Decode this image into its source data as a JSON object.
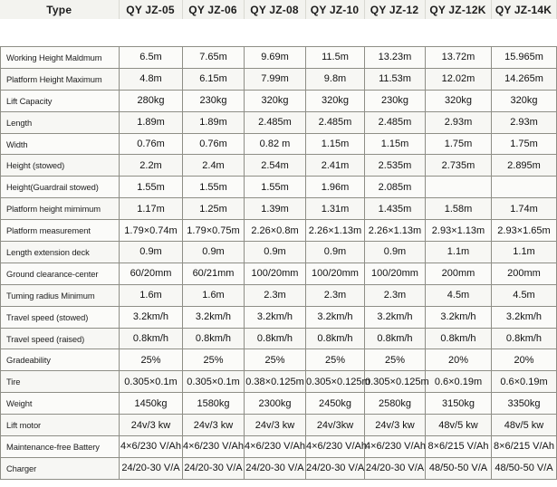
{
  "columns": [
    "Type",
    "QY JZ-05",
    "QY JZ-06",
    "QY JZ-08",
    "QY JZ-10",
    "QY JZ-12",
    "QY JZ-12K",
    "QY JZ-14K"
  ],
  "rows": [
    {
      "label": "Working Height Maldmum",
      "values": [
        "6.5m",
        "7.65m",
        "9.69m",
        "11.5m",
        "13.23m",
        "13.72m",
        "15.965m"
      ]
    },
    {
      "label": "Platform Height Maximum",
      "values": [
        "4.8m",
        "6.15m",
        "7.99m",
        "9.8m",
        "11.53m",
        "12.02m",
        "14.265m"
      ]
    },
    {
      "label": "Lift Capacity",
      "values": [
        "280kg",
        "230kg",
        "320kg",
        "320kg",
        "230kg",
        "320kg",
        "320kg"
      ]
    },
    {
      "label": "Length",
      "values": [
        "1.89m",
        "1.89m",
        "2.485m",
        "2.485m",
        "2.485m",
        "2.93m",
        "2.93m"
      ]
    },
    {
      "label": "Width",
      "values": [
        "0.76m",
        "0.76m",
        "0.82 m",
        "1.15m",
        "1.15m",
        "1.75m",
        "1.75m"
      ]
    },
    {
      "label": "Height (stowed)",
      "values": [
        "2.2m",
        "2.4m",
        "2.54m",
        "2.41m",
        "2.535m",
        "2.735m",
        "2.895m"
      ]
    },
    {
      "label": "Height(Guardrail stowed)",
      "values": [
        "1.55m",
        "1.55m",
        "1.55m",
        "1.96m",
        "2.085m",
        "",
        ""
      ]
    },
    {
      "label": "Platform height mimimum",
      "values": [
        "1.17m",
        "1.25m",
        "1.39m",
        "1.31m",
        "1.435m",
        "1.58m",
        "1.74m"
      ]
    },
    {
      "label": "Platform measurement",
      "values": [
        "1.79×0.74m",
        "1.79×0.75m",
        "2.26×0.8m",
        "2.26×1.13m",
        "2.26×1.13m",
        "2.93×1.13m",
        "2.93×1.65m"
      ]
    },
    {
      "label": "Length extension deck",
      "values": [
        "0.9m",
        "0.9m",
        "0.9m",
        "0.9m",
        "0.9m",
        "1.1m",
        "1.1m"
      ]
    },
    {
      "label": "Ground clearance-center",
      "values": [
        "60/20mm",
        "60/21mm",
        "100/20mm",
        "100/20mm",
        "100/20mm",
        "200mm",
        "200mm"
      ]
    },
    {
      "label": "Tuming radius Minimum",
      "values": [
        "1.6m",
        "1.6m",
        "2.3m",
        "2.3m",
        "2.3m",
        "4.5m",
        "4.5m"
      ]
    },
    {
      "label": "Travel speed (stowed)",
      "values": [
        "3.2km/h",
        "3.2km/h",
        "3.2km/h",
        "3.2km/h",
        "3.2km/h",
        "3.2km/h",
        "3.2km/h"
      ]
    },
    {
      "label": "Travel speed (raised)",
      "values": [
        "0.8km/h",
        "0.8km/h",
        "0.8km/h",
        "0.8km/h",
        "0.8km/h",
        "0.8km/h",
        "0.8km/h"
      ]
    },
    {
      "label": "Gradeability",
      "values": [
        "25%",
        "25%",
        "25%",
        "25%",
        "25%",
        "20%",
        "20%"
      ]
    },
    {
      "label": "Tire",
      "values": [
        "0.305×0.1m",
        "0.305×0.1m",
        "0.38×0.125m",
        "0.305×0.125m",
        "0.305×0.125m",
        "0.6×0.19m",
        "0.6×0.19m"
      ]
    },
    {
      "label": "Weight",
      "values": [
        "1450kg",
        "1580kg",
        "2300kg",
        "2450kg",
        "2580kg",
        "3150kg",
        "3350kg"
      ]
    },
    {
      "label": "Lift motor",
      "values": [
        "24v/3 kw",
        "24v/3 kw",
        "24v/3 kw",
        "24v/3kw",
        "24v/3 kw",
        "48v/5 kw",
        "48v/5 kw"
      ]
    },
    {
      "label": "Maintenance-free Battery",
      "values": [
        "4×6/230 V/Ah",
        "4×6/230 V/Ah",
        "4×6/230 V/Ah",
        "4×6/230 V/Ah",
        "4×6/230 V/Ah",
        "8×6/215 V/Ah",
        "8×6/215 V/Ah"
      ]
    },
    {
      "label": "Charger",
      "values": [
        "24/20-30 V/A",
        "24/20-30 V/A",
        "24/20-30 V/A",
        "24/20-30 V/A",
        "24/20-30 V/A",
        "48/50-50 V/A",
        "48/50-50 V/A"
      ]
    }
  ]
}
